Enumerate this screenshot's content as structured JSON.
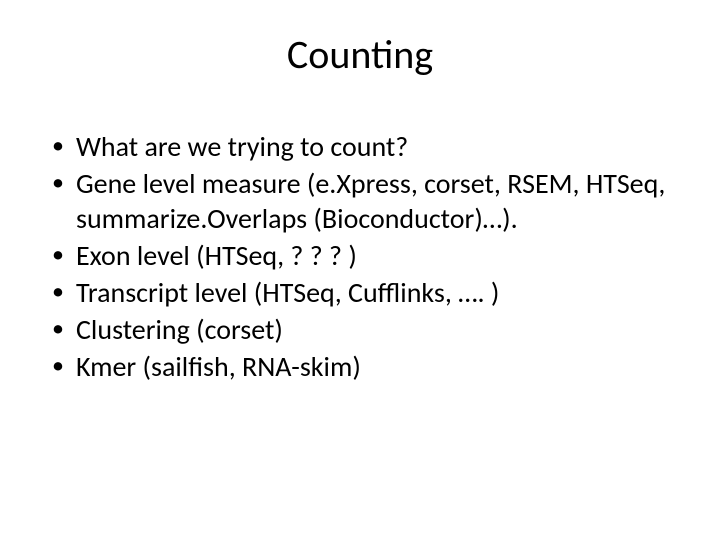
{
  "slide": {
    "title": "Counting",
    "title_fontsize": 40,
    "body_fontsize": 28,
    "text_color": "#000000",
    "background_color": "#ffffff",
    "bullets": [
      {
        "marker": "•",
        "text": "What are we trying to count?"
      },
      {
        "marker": "•",
        "text": "Gene level measure (e.Xpress, corset, RSEM, HTSeq, summarize.Overlaps (Bioconductor)…)."
      },
      {
        "marker": "•",
        "text": "Exon level (HTSeq, ? ? ? )"
      },
      {
        "marker": "•",
        "text": "Transcript level (HTSeq, Cufflinks, …. )"
      },
      {
        "marker": "•",
        "text": "Clustering (corset)"
      },
      {
        "marker": "•",
        "text": "Kmer (sailfish, RNA-skim)"
      }
    ]
  }
}
